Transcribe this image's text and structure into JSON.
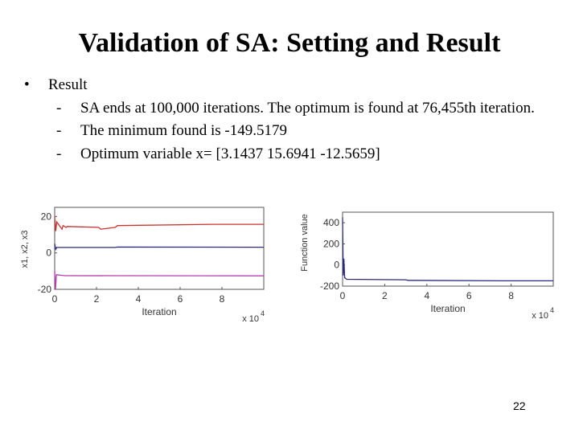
{
  "slide": {
    "title": "Validation of SA: Setting and Result",
    "bullet": "Result",
    "items": [
      "SA ends at 100,000 iterations. The optimum is found at 76,455th iteration.",
      "The minimum found is -149.5179",
      "Optimum variable x= [3.1437   15.6941  -12.5659]"
    ],
    "bullet_symbol": "•",
    "dash_symbol": "-",
    "page_number": "22"
  },
  "chart_data": [
    {
      "type": "line",
      "title": "",
      "xlabel": "Iteration",
      "ylabel": "x1, x2, x3",
      "x_multiplier": "x 10",
      "x_multiplier_exp": "4",
      "xlim": [
        0,
        10
      ],
      "ylim": [
        -20,
        25
      ],
      "x_tick_labels": [
        "0",
        "2",
        "4",
        "6",
        "8"
      ],
      "x_ticks": [
        0,
        2,
        4,
        6,
        8
      ],
      "y_tick_labels": [
        "-20",
        "0",
        "20"
      ],
      "y_ticks": [
        -20,
        0,
        20
      ],
      "series": [
        {
          "color": "#c83232",
          "x": [
            0,
            0.05,
            0.1,
            0.35,
            0.4,
            0.55,
            0.6,
            2.1,
            2.2,
            2.9,
            3.0,
            7.6,
            10
          ],
          "y": [
            20,
            12,
            17,
            13,
            15,
            14,
            14.5,
            14,
            13,
            14,
            15,
            15.7,
            15.7
          ]
        },
        {
          "color": "#2a2a80",
          "x": [
            0,
            0.05,
            0.1,
            2.9,
            3.0,
            10
          ],
          "y": [
            5,
            2,
            3,
            3,
            3.2,
            3.1
          ]
        },
        {
          "color": "#b43cb4",
          "x": [
            0,
            0.04,
            0.08,
            0.5,
            10
          ],
          "y": [
            -10,
            -25,
            -12,
            -12.5,
            -12.6
          ]
        }
      ]
    },
    {
      "type": "line",
      "title": "",
      "xlabel": "Iteration",
      "ylabel": "Function value",
      "x_multiplier": "x 10",
      "x_multiplier_exp": "4",
      "xlim": [
        0,
        10
      ],
      "ylim": [
        -200,
        500
      ],
      "x_tick_labels": [
        "0",
        "2",
        "4",
        "6",
        "8"
      ],
      "x_ticks": [
        0,
        2,
        4,
        6,
        8
      ],
      "y_tick_labels": [
        "400",
        "200",
        "0",
        "-200"
      ],
      "y_ticks": [
        400,
        200,
        0,
        -200
      ],
      "series": [
        {
          "color": "#2a2a80",
          "x": [
            0,
            0.03,
            0.06,
            0.1,
            0.2,
            3.0,
            3.1,
            7.6,
            10
          ],
          "y": [
            450,
            -100,
            60,
            -120,
            -135,
            -140,
            -145,
            -149.5,
            -149.5
          ]
        }
      ]
    }
  ]
}
